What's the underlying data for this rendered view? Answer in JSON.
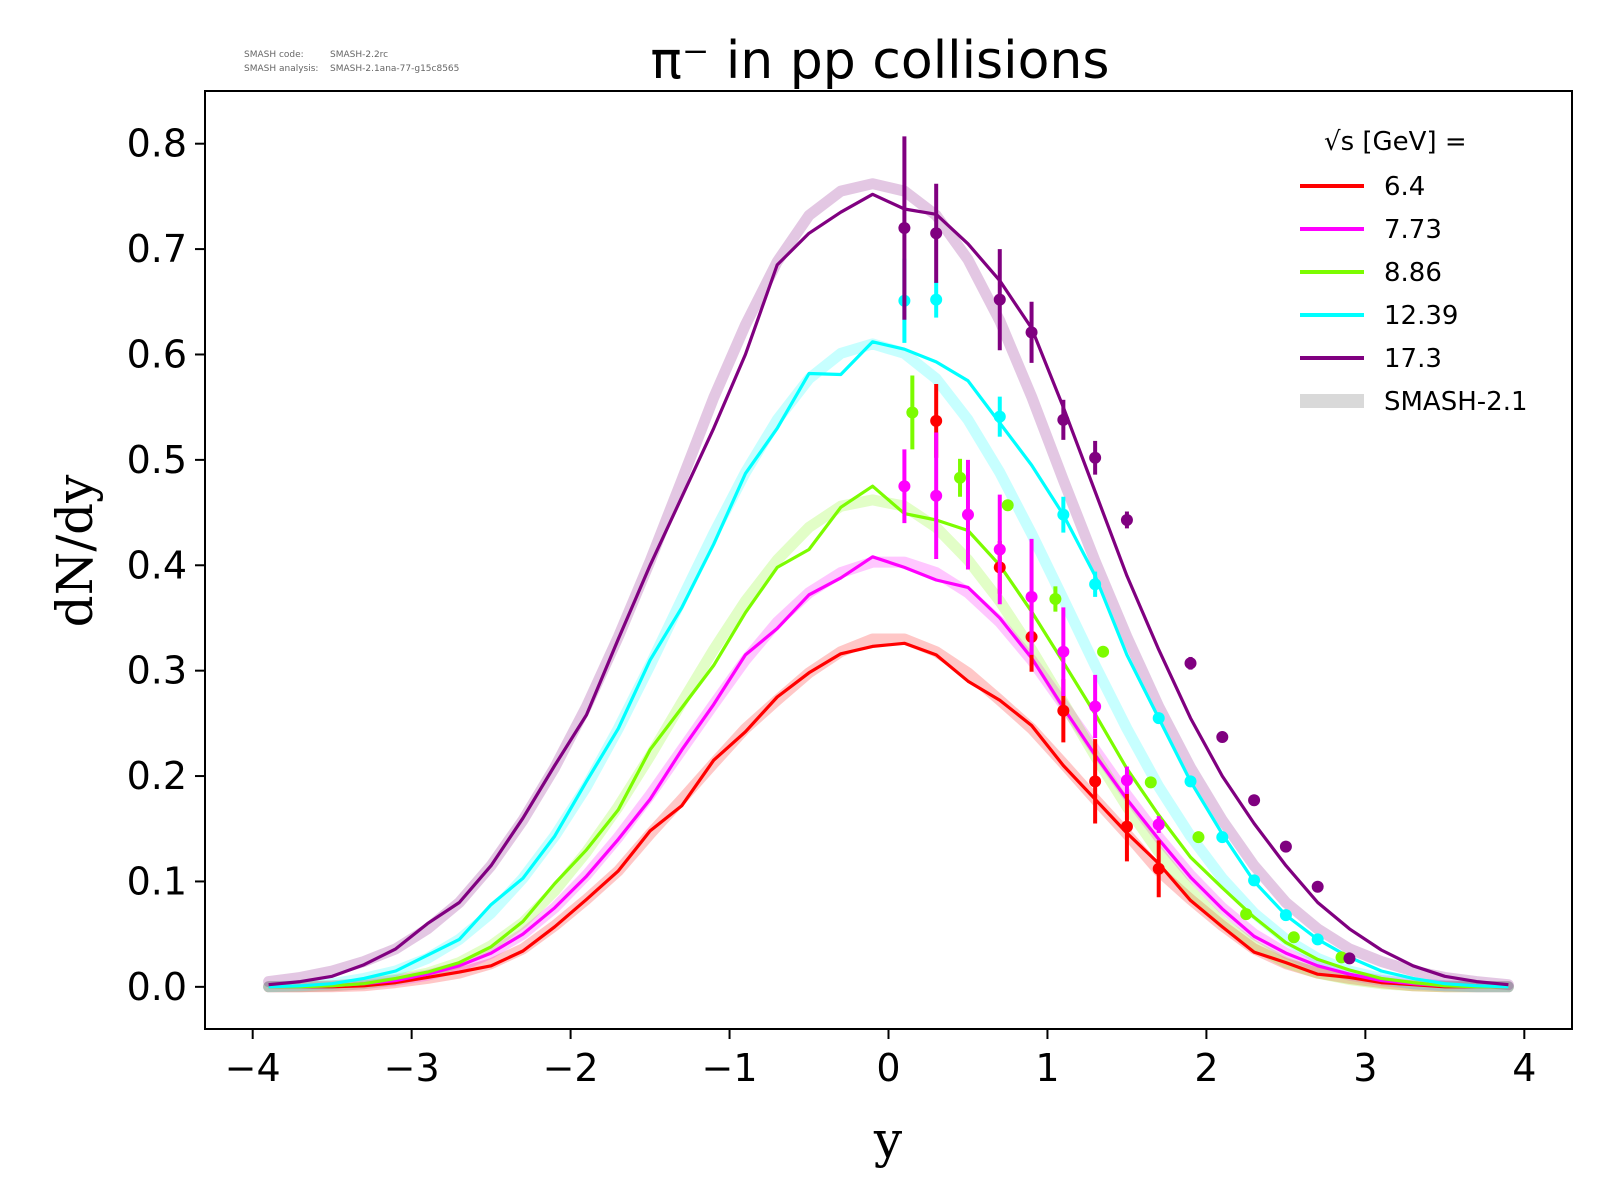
{
  "meta": {
    "code_label": "SMASH code:",
    "code_value": "SMASH-2.2rc",
    "analysis_label": "SMASH analysis:",
    "analysis_value": "SMASH-2.1ana-77-g15c8565"
  },
  "chart_data": {
    "type": "line",
    "title": "π⁻ in pp collisions",
    "xlabel": "y",
    "ylabel": "dN/dy",
    "xlim": [
      -4.3,
      4.3
    ],
    "ylim": [
      -0.04,
      0.85
    ],
    "xticks": [
      "−4",
      "−3",
      "−2",
      "−1",
      "0",
      "1",
      "2",
      "3",
      "4"
    ],
    "yticks": [
      "0.0",
      "0.1",
      "0.2",
      "0.3",
      "0.4",
      "0.5",
      "0.6",
      "0.7",
      "0.8"
    ],
    "legend": {
      "title": "√s  [GeV] =",
      "placement": "top-right",
      "band_label": "SMASH-2.1"
    },
    "band_color": "#d9d9d9",
    "x": [
      -3.9,
      -3.7,
      -3.5,
      -3.3,
      -3.1,
      -2.9,
      -2.7,
      -2.5,
      -2.3,
      -2.1,
      -1.9,
      -1.7,
      -1.5,
      -1.3,
      -1.1,
      -0.9,
      -0.7,
      -0.5,
      -0.3,
      -0.1,
      0.1,
      0.3,
      0.5,
      0.7,
      0.9,
      1.1,
      1.3,
      1.5,
      1.7,
      1.9,
      2.1,
      2.3,
      2.5,
      2.7,
      2.9,
      3.1,
      3.3,
      3.5,
      3.7,
      3.9
    ],
    "series": [
      {
        "name": "6.4",
        "color": "#ff0000",
        "values": [
          0.0,
          0.0,
          0.0,
          0.001,
          0.004,
          0.009,
          0.014,
          0.02,
          0.034,
          0.057,
          0.083,
          0.11,
          0.148,
          0.172,
          0.215,
          0.242,
          0.275,
          0.298,
          0.316,
          0.323,
          0.326,
          0.315,
          0.29,
          0.272,
          0.248,
          0.21,
          0.178,
          0.146,
          0.117,
          0.082,
          0.057,
          0.033,
          0.023,
          0.012,
          0.009,
          0.004,
          0.002,
          0.0,
          0.0,
          0.0
        ],
        "band": [
          0.0,
          0.0,
          0.0,
          0.001,
          0.004,
          0.008,
          0.013,
          0.022,
          0.036,
          0.058,
          0.083,
          0.11,
          0.145,
          0.178,
          0.212,
          0.245,
          0.272,
          0.298,
          0.318,
          0.33,
          0.33,
          0.318,
          0.298,
          0.272,
          0.245,
          0.212,
          0.178,
          0.145,
          0.11,
          0.083,
          0.058,
          0.036,
          0.022,
          0.013,
          0.008,
          0.004,
          0.001,
          0.0,
          0.0,
          0.0
        ],
        "points": [
          {
            "x": 0.3,
            "y": 0.537,
            "err": 0.035
          },
          {
            "x": 0.7,
            "y": 0.398,
            "err": 0.025
          },
          {
            "x": 0.9,
            "y": 0.332,
            "err": 0.033
          },
          {
            "x": 1.1,
            "y": 0.262,
            "err": 0.03
          },
          {
            "x": 1.3,
            "y": 0.195,
            "err": 0.04
          },
          {
            "x": 1.5,
            "y": 0.152,
            "err": 0.033
          },
          {
            "x": 1.7,
            "y": 0.112,
            "err": 0.027
          }
        ]
      },
      {
        "name": "7.73",
        "color": "#ff00ff",
        "values": [
          0.0,
          0.0,
          0.001,
          0.003,
          0.006,
          0.012,
          0.02,
          0.032,
          0.05,
          0.075,
          0.105,
          0.14,
          0.178,
          0.225,
          0.268,
          0.315,
          0.34,
          0.372,
          0.388,
          0.408,
          0.398,
          0.386,
          0.379,
          0.35,
          0.312,
          0.265,
          0.22,
          0.178,
          0.14,
          0.104,
          0.074,
          0.048,
          0.032,
          0.02,
          0.012,
          0.006,
          0.003,
          0.001,
          0.0,
          0.0
        ],
        "band": [
          0.0,
          0.0,
          0.001,
          0.003,
          0.006,
          0.011,
          0.019,
          0.032,
          0.05,
          0.075,
          0.106,
          0.142,
          0.182,
          0.225,
          0.268,
          0.31,
          0.346,
          0.374,
          0.393,
          0.403,
          0.403,
          0.393,
          0.374,
          0.346,
          0.31,
          0.268,
          0.225,
          0.182,
          0.142,
          0.106,
          0.075,
          0.05,
          0.032,
          0.019,
          0.011,
          0.006,
          0.003,
          0.001,
          0.0,
          0.0
        ],
        "points": [
          {
            "x": 0.1,
            "y": 0.475,
            "err": 0.035
          },
          {
            "x": 0.3,
            "y": 0.466,
            "err": 0.06
          },
          {
            "x": 0.5,
            "y": 0.448,
            "err": 0.052
          },
          {
            "x": 0.7,
            "y": 0.415,
            "err": 0.052
          },
          {
            "x": 0.9,
            "y": 0.37,
            "err": 0.055
          },
          {
            "x": 1.1,
            "y": 0.318,
            "err": 0.042
          },
          {
            "x": 1.3,
            "y": 0.266,
            "err": 0.03
          },
          {
            "x": 1.5,
            "y": 0.196,
            "err": 0.013
          },
          {
            "x": 1.7,
            "y": 0.154,
            "err": 0.008
          }
        ]
      },
      {
        "name": "8.86",
        "color": "#7cfc00",
        "values": [
          0.0,
          0.0,
          0.001,
          0.003,
          0.008,
          0.014,
          0.023,
          0.038,
          0.062,
          0.098,
          0.13,
          0.168,
          0.225,
          0.265,
          0.305,
          0.355,
          0.398,
          0.415,
          0.455,
          0.475,
          0.449,
          0.443,
          0.433,
          0.4,
          0.356,
          0.308,
          0.259,
          0.207,
          0.163,
          0.123,
          0.094,
          0.066,
          0.042,
          0.026,
          0.016,
          0.008,
          0.004,
          0.001,
          0.0,
          0.0
        ],
        "band": [
          0.0,
          0.0,
          0.001,
          0.003,
          0.007,
          0.013,
          0.023,
          0.039,
          0.061,
          0.091,
          0.128,
          0.171,
          0.219,
          0.27,
          0.32,
          0.366,
          0.405,
          0.436,
          0.456,
          0.462,
          0.456,
          0.436,
          0.405,
          0.366,
          0.32,
          0.27,
          0.219,
          0.171,
          0.128,
          0.091,
          0.061,
          0.039,
          0.023,
          0.013,
          0.007,
          0.003,
          0.001,
          0.0,
          0.0,
          0.0
        ],
        "points": [
          {
            "x": 0.15,
            "y": 0.545,
            "err": 0.035
          },
          {
            "x": 0.45,
            "y": 0.483,
            "err": 0.018
          },
          {
            "x": 0.75,
            "y": 0.457,
            "err": 0.005
          },
          {
            "x": 1.05,
            "y": 0.368,
            "err": 0.012
          },
          {
            "x": 1.35,
            "y": 0.318,
            "err": 0.005
          },
          {
            "x": 1.65,
            "y": 0.194,
            "err": 0.004
          },
          {
            "x": 1.95,
            "y": 0.142,
            "err": 0.004
          },
          {
            "x": 2.25,
            "y": 0.069,
            "err": 0.004
          },
          {
            "x": 2.55,
            "y": 0.047,
            "err": 0.003
          },
          {
            "x": 2.85,
            "y": 0.028,
            "err": 0.003
          }
        ]
      },
      {
        "name": "12.39",
        "color": "#00ffff",
        "values": [
          0.0,
          0.001,
          0.003,
          0.008,
          0.015,
          0.03,
          0.045,
          0.078,
          0.103,
          0.143,
          0.195,
          0.245,
          0.31,
          0.36,
          0.42,
          0.487,
          0.53,
          0.582,
          0.581,
          0.612,
          0.605,
          0.593,
          0.575,
          0.535,
          0.495,
          0.448,
          0.39,
          0.315,
          0.255,
          0.195,
          0.145,
          0.1,
          0.068,
          0.045,
          0.028,
          0.015,
          0.008,
          0.003,
          0.001,
          0.0
        ],
        "band": [
          0.0,
          0.001,
          0.003,
          0.008,
          0.015,
          0.027,
          0.045,
          0.07,
          0.103,
          0.143,
          0.19,
          0.245,
          0.305,
          0.368,
          0.43,
          0.488,
          0.538,
          0.577,
          0.601,
          0.61,
          0.601,
          0.577,
          0.538,
          0.488,
          0.43,
          0.368,
          0.305,
          0.245,
          0.19,
          0.143,
          0.103,
          0.07,
          0.045,
          0.027,
          0.015,
          0.008,
          0.003,
          0.001,
          0.0,
          0.0
        ],
        "points": [
          {
            "x": 0.1,
            "y": 0.651,
            "err": 0.04
          },
          {
            "x": 0.3,
            "y": 0.652,
            "err": 0.017
          },
          {
            "x": 0.7,
            "y": 0.541,
            "err": 0.019
          },
          {
            "x": 1.1,
            "y": 0.448,
            "err": 0.017
          },
          {
            "x": 1.3,
            "y": 0.382,
            "err": 0.012
          },
          {
            "x": 1.7,
            "y": 0.255,
            "err": 0.005
          },
          {
            "x": 1.9,
            "y": 0.195,
            "err": 0.005
          },
          {
            "x": 2.1,
            "y": 0.142,
            "err": 0.004
          },
          {
            "x": 2.3,
            "y": 0.101,
            "err": 0.004
          },
          {
            "x": 2.5,
            "y": 0.068,
            "err": 0.003
          },
          {
            "x": 2.7,
            "y": 0.045,
            "err": 0.003
          }
        ]
      },
      {
        "name": "17.3",
        "color": "#800080",
        "values": [
          0.002,
          0.005,
          0.01,
          0.021,
          0.036,
          0.06,
          0.08,
          0.115,
          0.16,
          0.21,
          0.258,
          0.33,
          0.4,
          0.465,
          0.53,
          0.6,
          0.685,
          0.715,
          0.735,
          0.752,
          0.738,
          0.733,
          0.705,
          0.67,
          0.625,
          0.55,
          0.47,
          0.39,
          0.32,
          0.255,
          0.2,
          0.155,
          0.115,
          0.08,
          0.055,
          0.035,
          0.02,
          0.01,
          0.005,
          0.002
        ],
        "band": [
          0.005,
          0.009,
          0.015,
          0.024,
          0.036,
          0.055,
          0.08,
          0.115,
          0.158,
          0.208,
          0.266,
          0.332,
          0.404,
          0.481,
          0.559,
          0.628,
          0.688,
          0.732,
          0.755,
          0.762,
          0.755,
          0.732,
          0.69,
          0.632,
          0.56,
          0.481,
          0.404,
          0.332,
          0.266,
          0.208,
          0.158,
          0.115,
          0.08,
          0.055,
          0.036,
          0.024,
          0.015,
          0.009,
          0.005,
          0.002
        ],
        "points": [
          {
            "x": 0.1,
            "y": 0.72,
            "err": 0.087
          },
          {
            "x": 0.3,
            "y": 0.715,
            "err": 0.047
          },
          {
            "x": 0.7,
            "y": 0.652,
            "err": 0.048
          },
          {
            "x": 0.9,
            "y": 0.621,
            "err": 0.029
          },
          {
            "x": 1.1,
            "y": 0.538,
            "err": 0.019
          },
          {
            "x": 1.3,
            "y": 0.502,
            "err": 0.016
          },
          {
            "x": 1.5,
            "y": 0.443,
            "err": 0.008
          },
          {
            "x": 1.9,
            "y": 0.307,
            "err": 0.006
          },
          {
            "x": 2.1,
            "y": 0.237,
            "err": 0.004
          },
          {
            "x": 2.3,
            "y": 0.177,
            "err": 0.004
          },
          {
            "x": 2.5,
            "y": 0.133,
            "err": 0.003
          },
          {
            "x": 2.7,
            "y": 0.095,
            "err": 0.003
          },
          {
            "x": 2.9,
            "y": 0.027,
            "err": 0.003
          }
        ]
      }
    ]
  }
}
